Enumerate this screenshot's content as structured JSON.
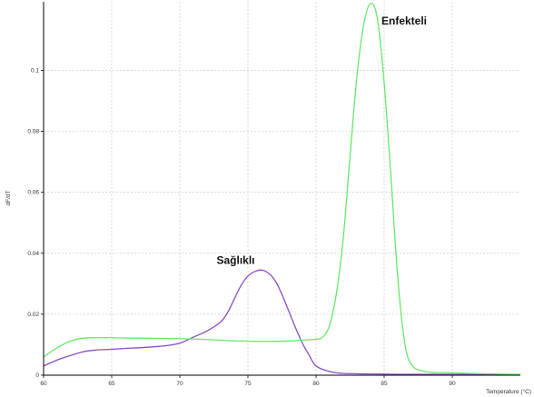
{
  "chart_data": {
    "type": "line",
    "xlabel": "Temperature (°C)",
    "ylabel": "dF/dT",
    "xlim": [
      60,
      95
    ],
    "ylim": [
      0,
      0.1225
    ],
    "x_ticks": [
      60,
      65,
      70,
      75,
      80,
      85,
      90
    ],
    "y_ticks": [
      0,
      0.02,
      0.04,
      0.06,
      0.08,
      0.1
    ],
    "y_tick_labels": [
      "0",
      "0.02",
      "0.04",
      "0.06",
      "0.08",
      "0.1"
    ],
    "grid": true,
    "series": [
      {
        "name": "",
        "color": "#8a4fc4",
        "x": [
          60,
          61,
          62,
          63,
          64,
          65,
          66,
          67,
          68,
          69,
          70,
          71,
          72,
          73,
          73.5,
          74,
          74.5,
          75,
          75.5,
          76,
          76.5,
          77,
          77.5,
          78,
          78.5,
          79,
          79.5,
          80,
          81,
          82,
          84,
          86,
          88,
          90,
          92,
          95
        ],
        "y": [
          0.003,
          0.005,
          0.0065,
          0.0078,
          0.0083,
          0.0085,
          0.0088,
          0.009,
          0.0093,
          0.0097,
          0.0105,
          0.0125,
          0.0145,
          0.0175,
          0.0205,
          0.025,
          0.0295,
          0.0325,
          0.034,
          0.0345,
          0.0335,
          0.031,
          0.0265,
          0.021,
          0.0155,
          0.0105,
          0.0065,
          0.003,
          0.0012,
          0.0006,
          0.0004,
          0.0003,
          0.0003,
          0.0003,
          0.0002,
          0.0002
        ]
      },
      {
        "name": "",
        "color": "#66e86a",
        "x": [
          60,
          61,
          62,
          63,
          64,
          65,
          66,
          68,
          70,
          72,
          74,
          76,
          78,
          79,
          80,
          80.5,
          81,
          81.5,
          82,
          82.5,
          83,
          83.5,
          84,
          84.5,
          85,
          85.5,
          86,
          86.5,
          87,
          88,
          90,
          92,
          95
        ],
        "y": [
          0.006,
          0.009,
          0.0112,
          0.0122,
          0.0123,
          0.0123,
          0.0122,
          0.0121,
          0.012,
          0.0117,
          0.0113,
          0.0111,
          0.0112,
          0.0115,
          0.0118,
          0.0125,
          0.0165,
          0.027,
          0.045,
          0.072,
          0.098,
          0.115,
          0.122,
          0.117,
          0.096,
          0.065,
          0.032,
          0.011,
          0.0035,
          0.0012,
          0.0008,
          0.0005,
          0.0003
        ]
      }
    ],
    "annotations": [
      {
        "text": "Enfekteli",
        "x": 84.8,
        "y": 0.115
      },
      {
        "text": "Sağlıklı",
        "x": 72.7,
        "y": 0.0365
      }
    ]
  }
}
